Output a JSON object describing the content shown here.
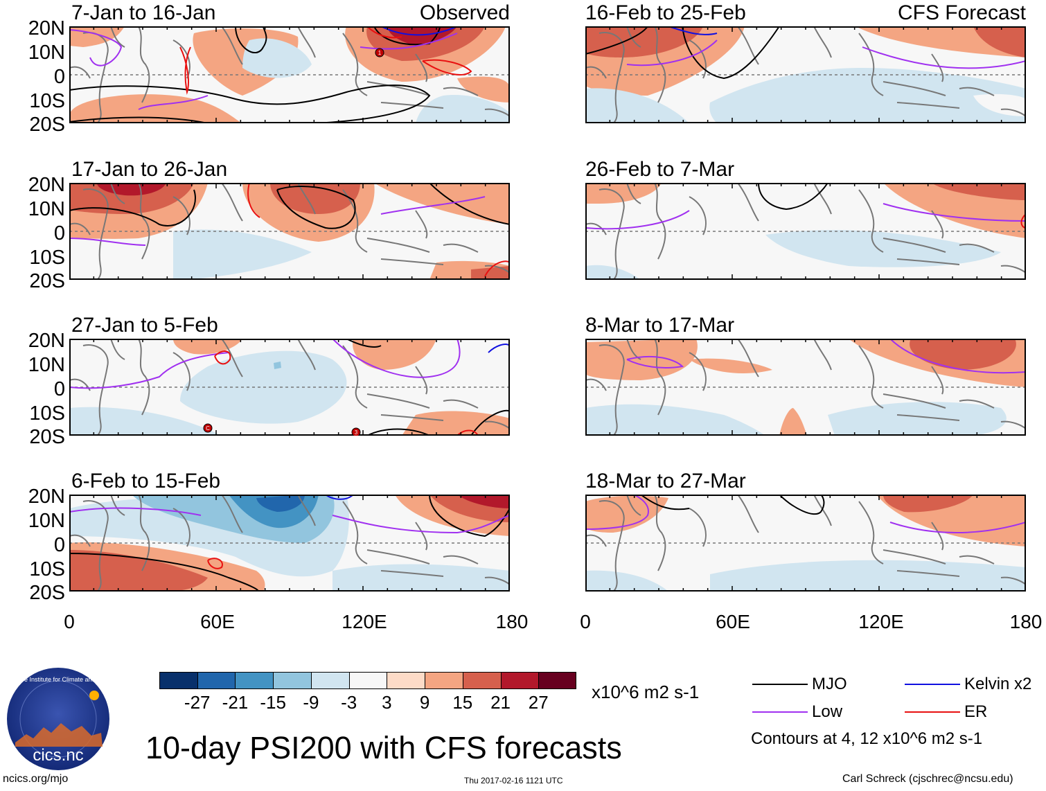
{
  "panels": [
    {
      "period": "7-Jan to 16-Jan",
      "label": "Observed"
    },
    {
      "period": "16-Feb to 25-Feb",
      "label": "CFS Forecast"
    },
    {
      "period": "17-Jan to 26-Jan",
      "label": ""
    },
    {
      "period": "26-Feb to 7-Mar",
      "label": ""
    },
    {
      "period": "27-Jan to 5-Feb",
      "label": ""
    },
    {
      "period": "8-Mar to 17-Mar",
      "label": ""
    },
    {
      "period": "6-Feb to 15-Feb",
      "label": ""
    },
    {
      "period": "18-Mar to 27-Mar",
      "label": ""
    }
  ],
  "lat_labels": [
    "20N",
    "10N",
    "0",
    "10S",
    "20S"
  ],
  "lon_labels": [
    "0",
    "60E",
    "120E",
    "180"
  ],
  "colorbar": {
    "colors": [
      "#08306b",
      "#2166ac",
      "#4393c3",
      "#92c5de",
      "#d1e5f0",
      "#f7f7f7",
      "#fddbc7",
      "#f4a582",
      "#d6604d",
      "#b2182b",
      "#67001f"
    ],
    "ticks": [
      "-27",
      "-21",
      "-15",
      "-9",
      "-3",
      "3",
      "9",
      "15",
      "21",
      "27"
    ],
    "units": "x10^6 m2 s-1"
  },
  "legend": {
    "items": [
      {
        "name": "MJO",
        "color": "#000000"
      },
      {
        "name": "Kelvin x2",
        "color": "#1010e0"
      },
      {
        "name": "Low",
        "color": "#a030f0"
      },
      {
        "name": "ER",
        "color": "#e81010"
      }
    ],
    "note": "Contours at 4, 12 x10^6 m2 s-1"
  },
  "title": "10-day PSI200 with CFS forecasts",
  "logo_text": "cics.nc",
  "logo_ring": "Cooperative Institute for Climate and Satellites",
  "footer": {
    "left": "ncics.org/mjo",
    "center": "Thu 2017-02-16 1121 UTC",
    "right": "Carl Schreck (cjschrec@ncsu.edu)"
  },
  "storms": [
    {
      "panel": 0,
      "symbol": "1"
    },
    {
      "panel": 4,
      "symbol": "C"
    },
    {
      "panel": 4,
      "symbol": "3"
    }
  ]
}
